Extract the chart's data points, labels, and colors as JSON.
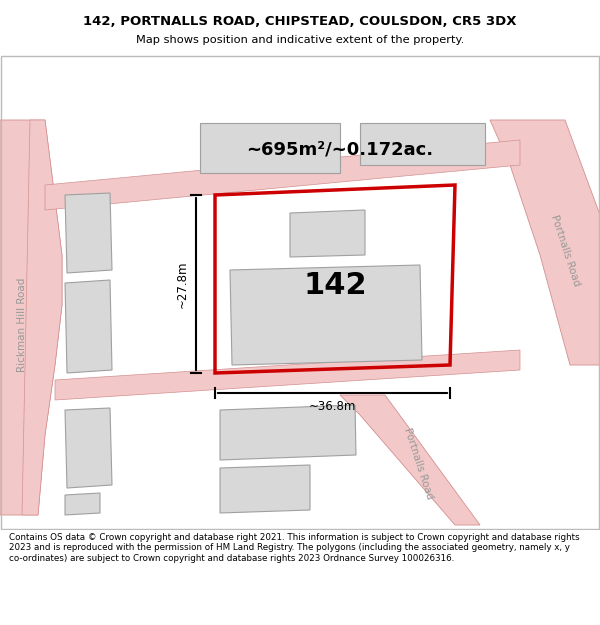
{
  "title": "142, PORTNALLS ROAD, CHIPSTEAD, COULSDON, CR5 3DX",
  "subtitle": "Map shows position and indicative extent of the property.",
  "footer": "Contains OS data © Crown copyright and database right 2021. This information is subject to Crown copyright and database rights 2023 and is reproduced with the permission of HM Land Registry. The polygons (including the associated geometry, namely x, y co-ordinates) are subject to Crown copyright and database rights 2023 Ordnance Survey 100026316.",
  "area_text": "~695m²/~0.172ac.",
  "number_text": "142",
  "dim_width": "~36.8m",
  "dim_height": "~27.8m",
  "road_fill": "#f2c8c8",
  "road_edge": "#d49090",
  "bld_fill": "#d8d8d8",
  "bld_edge": "#a0a0a0",
  "plot_edge": "#cc0000",
  "rickman_label": "Rickman Hill Road",
  "portnalls_label_top": "Portnalls Road",
  "portnalls_label_bot": "Portnalls Road"
}
